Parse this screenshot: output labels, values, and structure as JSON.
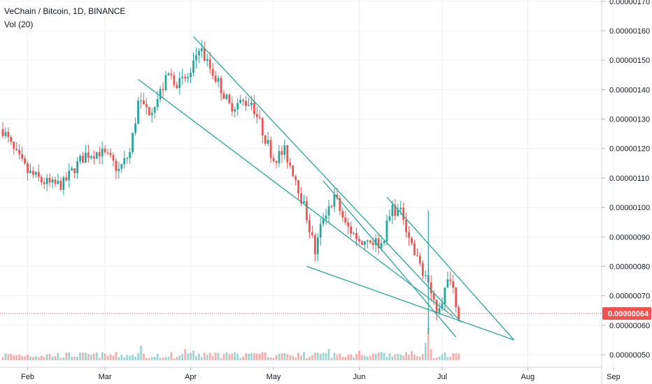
{
  "header": {
    "title": "VeChain / Bitcoin, 1D, BINANCE",
    "volume_label": "Vol (20)"
  },
  "colors": {
    "up": "#26a69a",
    "down": "#ef5350",
    "grid": "#eef0f3",
    "trendline": "#26a69a",
    "price_line": "#ef5350",
    "axis_text": "#131722"
  },
  "chart_data": {
    "type": "candlestick",
    "title": "VeChain / Bitcoin, 1D, BINANCE",
    "exchange": "BINANCE",
    "interval": "1D",
    "x_tick_labels": [
      "Feb",
      "Mar",
      "Apr",
      "May",
      "Jun",
      "Jul",
      "Aug",
      "Sep"
    ],
    "y_tick_labels": [
      "0.00000050",
      "0.00000060",
      "0.00000070",
      "0.00000080",
      "0.00000090",
      "0.00000100",
      "0.00000110",
      "0.00000120",
      "0.00000130",
      "0.00000140",
      "0.00000150",
      "0.00000160",
      "0.00000170"
    ],
    "ylim": [
      4.9e-07,
      1.7e-06
    ],
    "last_price_label": "0.00000064",
    "last_price": 6.4e-07,
    "grid": true,
    "close_path": [
      [
        "2019-01-23",
        1.265e-06
      ],
      [
        "2019-01-27",
        1.19e-06
      ],
      [
        "2019-02-01",
        1.12e-06
      ],
      [
        "2019-02-06",
        1.09e-06
      ],
      [
        "2019-02-10",
        1.075e-06
      ],
      [
        "2019-02-14",
        1.08e-06
      ],
      [
        "2019-02-18",
        1.135e-06
      ],
      [
        "2019-02-22",
        1.18e-06
      ],
      [
        "2019-02-27",
        1.19e-06
      ],
      [
        "2019-03-03",
        1.16e-06
      ],
      [
        "2019-03-06",
        1.125e-06
      ],
      [
        "2019-03-10",
        1.185e-06
      ],
      [
        "2019-03-13",
        1.355e-06
      ],
      [
        "2019-03-17",
        1.33e-06
      ],
      [
        "2019-03-20",
        1.37e-06
      ],
      [
        "2019-03-24",
        1.45e-06
      ],
      [
        "2019-03-28",
        1.42e-06
      ],
      [
        "2019-04-01",
        1.45e-06
      ],
      [
        "2019-04-04",
        1.55e-06
      ],
      [
        "2019-04-07",
        1.49e-06
      ],
      [
        "2019-04-11",
        1.425e-06
      ],
      [
        "2019-04-15",
        1.345e-06
      ],
      [
        "2019-04-19",
        1.355e-06
      ],
      [
        "2019-04-23",
        1.36e-06
      ],
      [
        "2019-04-27",
        1.26e-06
      ],
      [
        "2019-05-01",
        1.165e-06
      ],
      [
        "2019-05-05",
        1.19e-06
      ],
      [
        "2019-05-09",
        1.1e-06
      ],
      [
        "2019-05-13",
        9.7e-07
      ],
      [
        "2019-05-16",
        8.5e-07
      ],
      [
        "2019-05-19",
        9.7e-07
      ],
      [
        "2019-05-23",
        1.04e-06
      ],
      [
        "2019-05-27",
        9.4e-07
      ],
      [
        "2019-06-01",
        8.9e-07
      ],
      [
        "2019-06-05",
        8.9e-07
      ],
      [
        "2019-06-09",
        8.75e-07
      ],
      [
        "2019-06-13",
        1e-06
      ],
      [
        "2019-06-17",
        9.7e-07
      ],
      [
        "2019-06-21",
        8.4e-07
      ],
      [
        "2019-06-25",
        7.7e-07
      ],
      [
        "2019-06-29",
        6.5e-07
      ],
      [
        "2019-07-01",
        6.9e-07
      ],
      [
        "2019-07-04",
        7.7e-07
      ],
      [
        "2019-07-07",
        6.4e-07
      ]
    ],
    "volume_spikes": [
      [
        "2019-06-25",
        0.55
      ],
      [
        "2019-06-26",
        1.0
      ],
      [
        "2019-06-27",
        0.35
      ],
      [
        "2019-03-14",
        0.45
      ],
      [
        "2019-03-30",
        0.35
      ],
      [
        "2019-04-02",
        0.3
      ],
      [
        "2019-05-21",
        0.35
      ],
      [
        "2019-06-01",
        0.3
      ],
      [
        "2019-06-20",
        0.28
      ]
    ],
    "trendlines": [
      {
        "from": [
          "2019-03-13",
          1.435e-06
        ],
        "to": [
          "2019-07-05",
          6.3e-07
        ]
      },
      {
        "from": [
          "2019-04-02",
          1.58e-06
        ],
        "to": [
          "2019-07-08",
          6.1e-07
        ]
      },
      {
        "from": [
          "2019-05-13",
          8e-07
        ],
        "to": [
          "2019-07-27",
          5.5e-07
        ]
      },
      {
        "from": [
          "2019-06-11",
          1.035e-06
        ],
        "to": [
          "2019-07-27",
          5.5e-07
        ]
      },
      {
        "from": [
          "2019-05-19",
          1.09e-06
        ],
        "to": [
          "2019-07-06",
          5.6e-07
        ]
      }
    ]
  }
}
